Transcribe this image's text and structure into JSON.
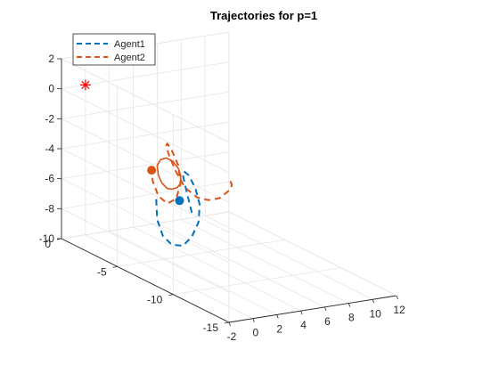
{
  "chart_data": {
    "type": "line",
    "title": "Trajectories for p=1",
    "xlabel": "",
    "ylabel": "",
    "zlabel": "",
    "xlim": [
      -2,
      12
    ],
    "ylim": [
      -15,
      0
    ],
    "zlim": [
      -10,
      2
    ],
    "xticks": [
      "-2",
      "0",
      "2",
      "4",
      "6",
      "8",
      "10",
      "12"
    ],
    "yticks": [
      "-15",
      "-10",
      "-5",
      "0"
    ],
    "zticks": [
      "-10",
      "-8",
      "-6",
      "-4",
      "-2",
      "0",
      "2"
    ],
    "grid": true,
    "legend_position": "top-left",
    "legend": [
      "Agent1",
      "Agent2"
    ],
    "series": [
      {
        "name": "Agent1",
        "style": "dashed",
        "color": "#0072BD",
        "points": [
          [
            4.6,
            -4.6,
            -7.4
          ],
          [
            4.6,
            -4.3,
            -6.6
          ],
          [
            4.6,
            -4.0,
            -5.8
          ],
          [
            4.6,
            -3.8,
            -5.2
          ],
          [
            4.6,
            -3.9,
            -4.9
          ],
          [
            4.6,
            -4.3,
            -5.0
          ],
          [
            4.6,
            -4.9,
            -5.6
          ],
          [
            4.6,
            -5.3,
            -6.6
          ],
          [
            4.6,
            -5.2,
            -7.8
          ],
          [
            4.6,
            -4.6,
            -9.0
          ],
          [
            4.6,
            -3.8,
            -9.9
          ],
          [
            4.6,
            -2.8,
            -10.2
          ],
          [
            4.6,
            -2.0,
            -9.9
          ],
          [
            4.6,
            -1.5,
            -9.0
          ],
          [
            4.6,
            -1.4,
            -7.6
          ]
        ]
      },
      {
        "name": "Agent2",
        "style": "dashed",
        "color": "#D95319",
        "points": [
          [
            2.5,
            -10.3,
            -2.9
          ],
          [
            2.9,
            -10.0,
            -3.3
          ],
          [
            3.3,
            -9.5,
            -3.8
          ],
          [
            3.7,
            -8.7,
            -4.4
          ],
          [
            4.0,
            -7.7,
            -5.2
          ],
          [
            4.2,
            -6.5,
            -5.8
          ],
          [
            4.4,
            -5.3,
            -6.1
          ],
          [
            4.5,
            -4.1,
            -5.9
          ],
          [
            4.6,
            -3.2,
            -5.2
          ],
          [
            4.6,
            -2.6,
            -4.4
          ],
          [
            4.6,
            -2.3,
            -3.8
          ],
          [
            4.6,
            -2.4,
            -3.6
          ],
          [
            4.6,
            -2.8,
            -3.9
          ],
          [
            4.6,
            -3.4,
            -4.7
          ],
          [
            4.6,
            -3.6,
            -5.8
          ],
          [
            4.6,
            -3.2,
            -7.0
          ],
          [
            4.6,
            -2.4,
            -7.6
          ],
          [
            4.6,
            -1.6,
            -7.4
          ],
          [
            4.6,
            -1.1,
            -6.6
          ],
          [
            4.6,
            -1.0,
            -5.9
          ]
        ]
      },
      {
        "name": "",
        "style": "solid",
        "color": "#D95319",
        "points": [
          [
            4.6,
            -2.8,
            -6.5
          ],
          [
            4.6,
            -3.3,
            -6.2
          ],
          [
            4.6,
            -3.6,
            -5.8
          ],
          [
            4.6,
            -3.6,
            -5.3
          ],
          [
            4.6,
            -3.4,
            -4.9
          ],
          [
            4.6,
            -2.9,
            -4.6
          ],
          [
            4.6,
            -2.3,
            -4.6
          ],
          [
            4.6,
            -1.8,
            -4.9
          ],
          [
            4.6,
            -1.5,
            -5.4
          ],
          [
            4.6,
            -1.6,
            -6.0
          ],
          [
            4.6,
            -1.9,
            -6.4
          ],
          [
            4.6,
            -2.4,
            -6.6
          ],
          [
            4.6,
            -2.8,
            -6.5
          ]
        ]
      }
    ],
    "markers": [
      {
        "type": "star",
        "color": "#FF0000",
        "point": [
          0,
          0,
          0
        ]
      },
      {
        "type": "dot",
        "color": "#0072BD",
        "point": [
          4.6,
          -3.5,
          -7.0
        ]
      },
      {
        "type": "dot",
        "color": "#D95319",
        "point": [
          4.6,
          -1.0,
          -5.9
        ]
      }
    ]
  }
}
